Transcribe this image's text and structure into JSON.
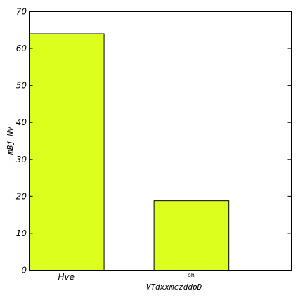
{
  "chart_data": {
    "type": "bar",
    "categories": [
      "Hve",
      "oh"
    ],
    "values": [
      64,
      18.8
    ],
    "title": "",
    "xlabel": "VTdxxmczddpD",
    "ylabel": "mBj Nv",
    "ylim": [
      0,
      70
    ],
    "yticks": [
      0,
      10,
      20,
      30,
      40,
      50,
      60,
      70
    ],
    "grid": false,
    "bar_color": "#dcff1e",
    "edge_color": "#000000"
  }
}
